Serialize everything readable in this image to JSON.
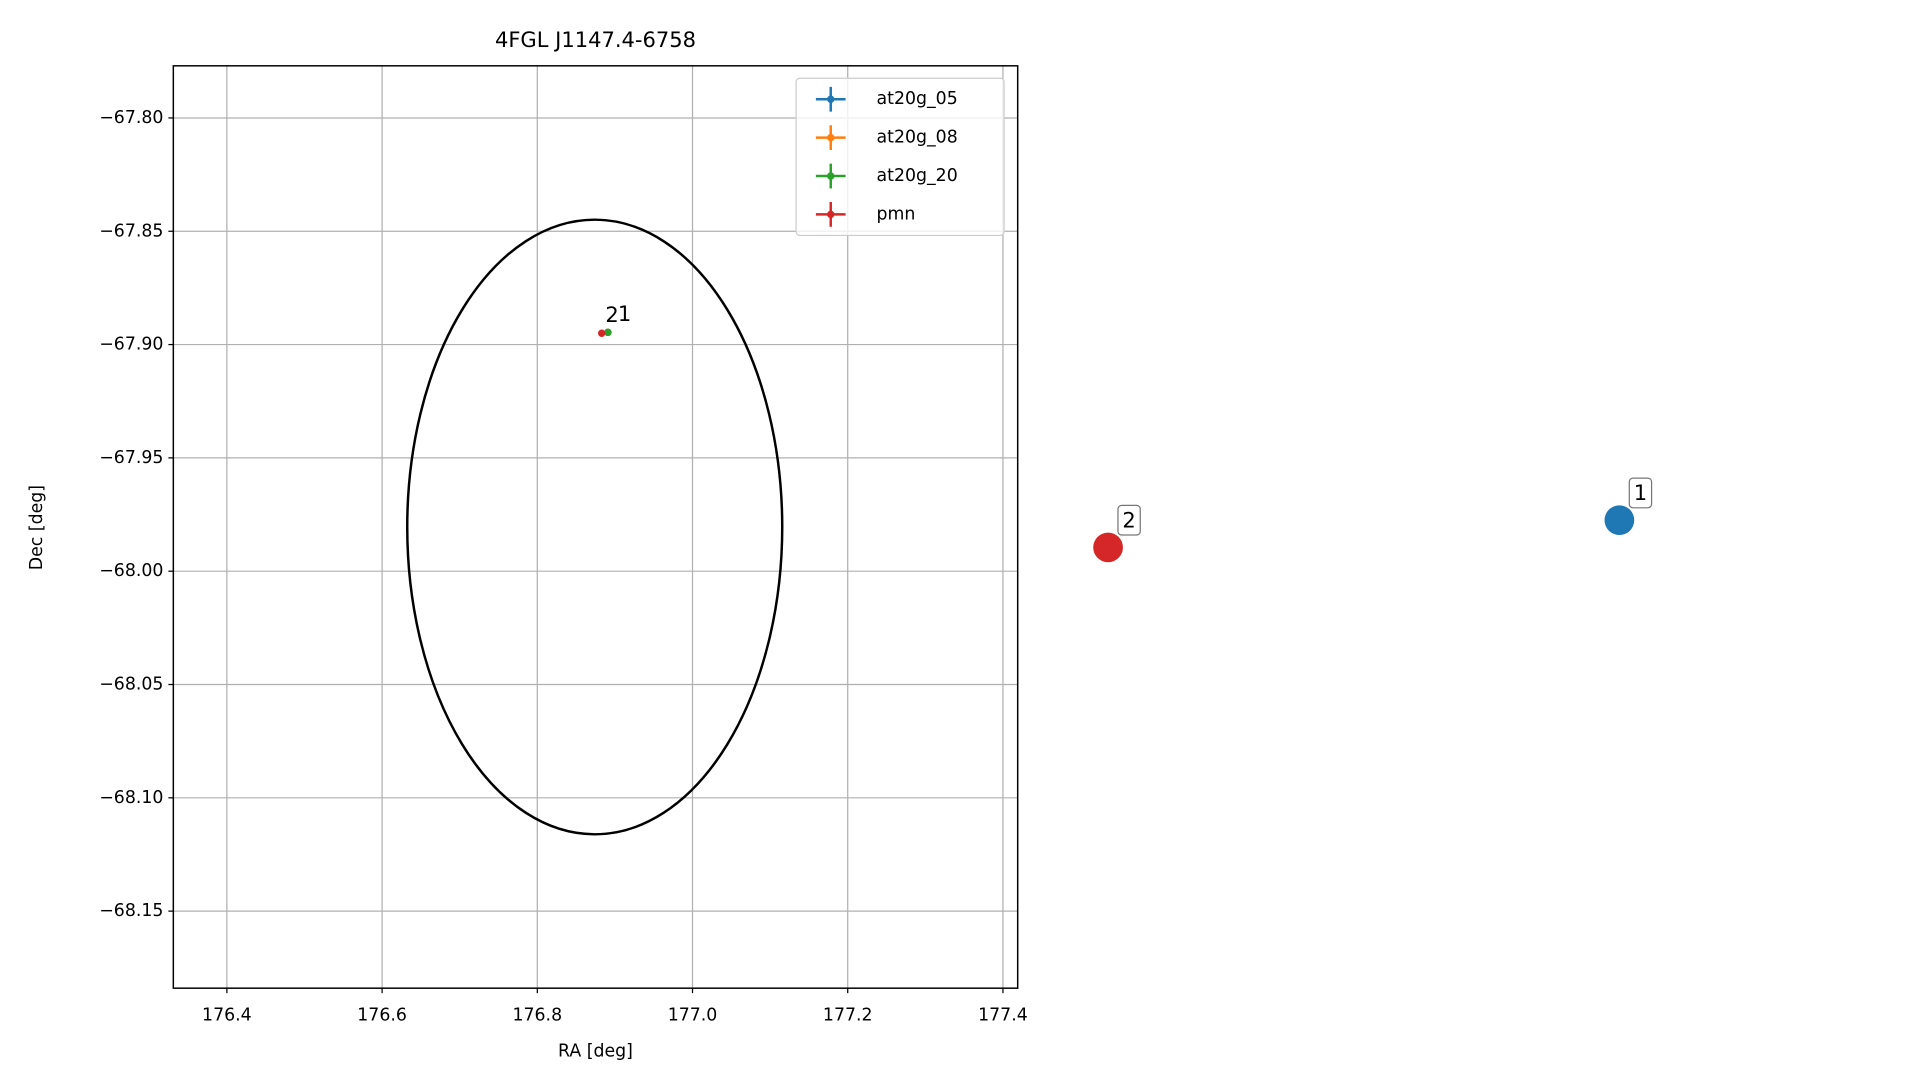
{
  "chart_data": {
    "type": "scatter",
    "title": "4FGL J1147.4-6758",
    "xlabel": "RA [deg]",
    "ylabel": "Dec [deg]",
    "xlim": [
      176.331,
      177.419
    ],
    "ylim": [
      -68.184,
      -67.777
    ],
    "xticks": [
      176.4,
      176.6,
      176.8,
      {
        "value": 177,
        "label": "177.0"
      },
      177.2,
      177.4
    ],
    "yticks": [
      {
        "value": -67.8,
        "label": "−67.80"
      },
      {
        "value": -67.85,
        "label": "−67.85"
      },
      {
        "value": -67.9,
        "label": "−67.90"
      },
      {
        "value": -67.95,
        "label": "−67.95"
      },
      {
        "value": -68,
        "label": "−68.00"
      },
      {
        "value": -68.05,
        "label": "−68.05"
      },
      {
        "value": -68.1,
        "label": "−68.10"
      },
      {
        "value": -68.15,
        "label": "−68.15"
      }
    ],
    "grid": true,
    "legend": "upper right",
    "series": [
      {
        "name": "at20g_05",
        "color": "#1f77b4",
        "x": [
          176.891
        ],
        "values": [
          -67.8946
        ]
      },
      {
        "name": "at20g_08",
        "color": "#ff7f0e",
        "x": [
          176.891
        ],
        "values": [
          -67.8946
        ]
      },
      {
        "name": "at20g_20",
        "color": "#2ca02c",
        "x": [
          176.891
        ],
        "values": [
          -67.8946
        ]
      },
      {
        "name": "pmn",
        "color": "#d62728",
        "x": [
          176.883
        ],
        "values": [
          -67.895
        ]
      }
    ],
    "ellipse": {
      "center_x": 176.874,
      "center_y": -67.9805,
      "semi_x": 0.2416,
      "semi_y": 0.1356,
      "color": "#000000"
    },
    "sources": [
      {
        "label": "1",
        "color": "#1f77b4"
      },
      {
        "label": "2",
        "color": "#d62728"
      }
    ]
  }
}
